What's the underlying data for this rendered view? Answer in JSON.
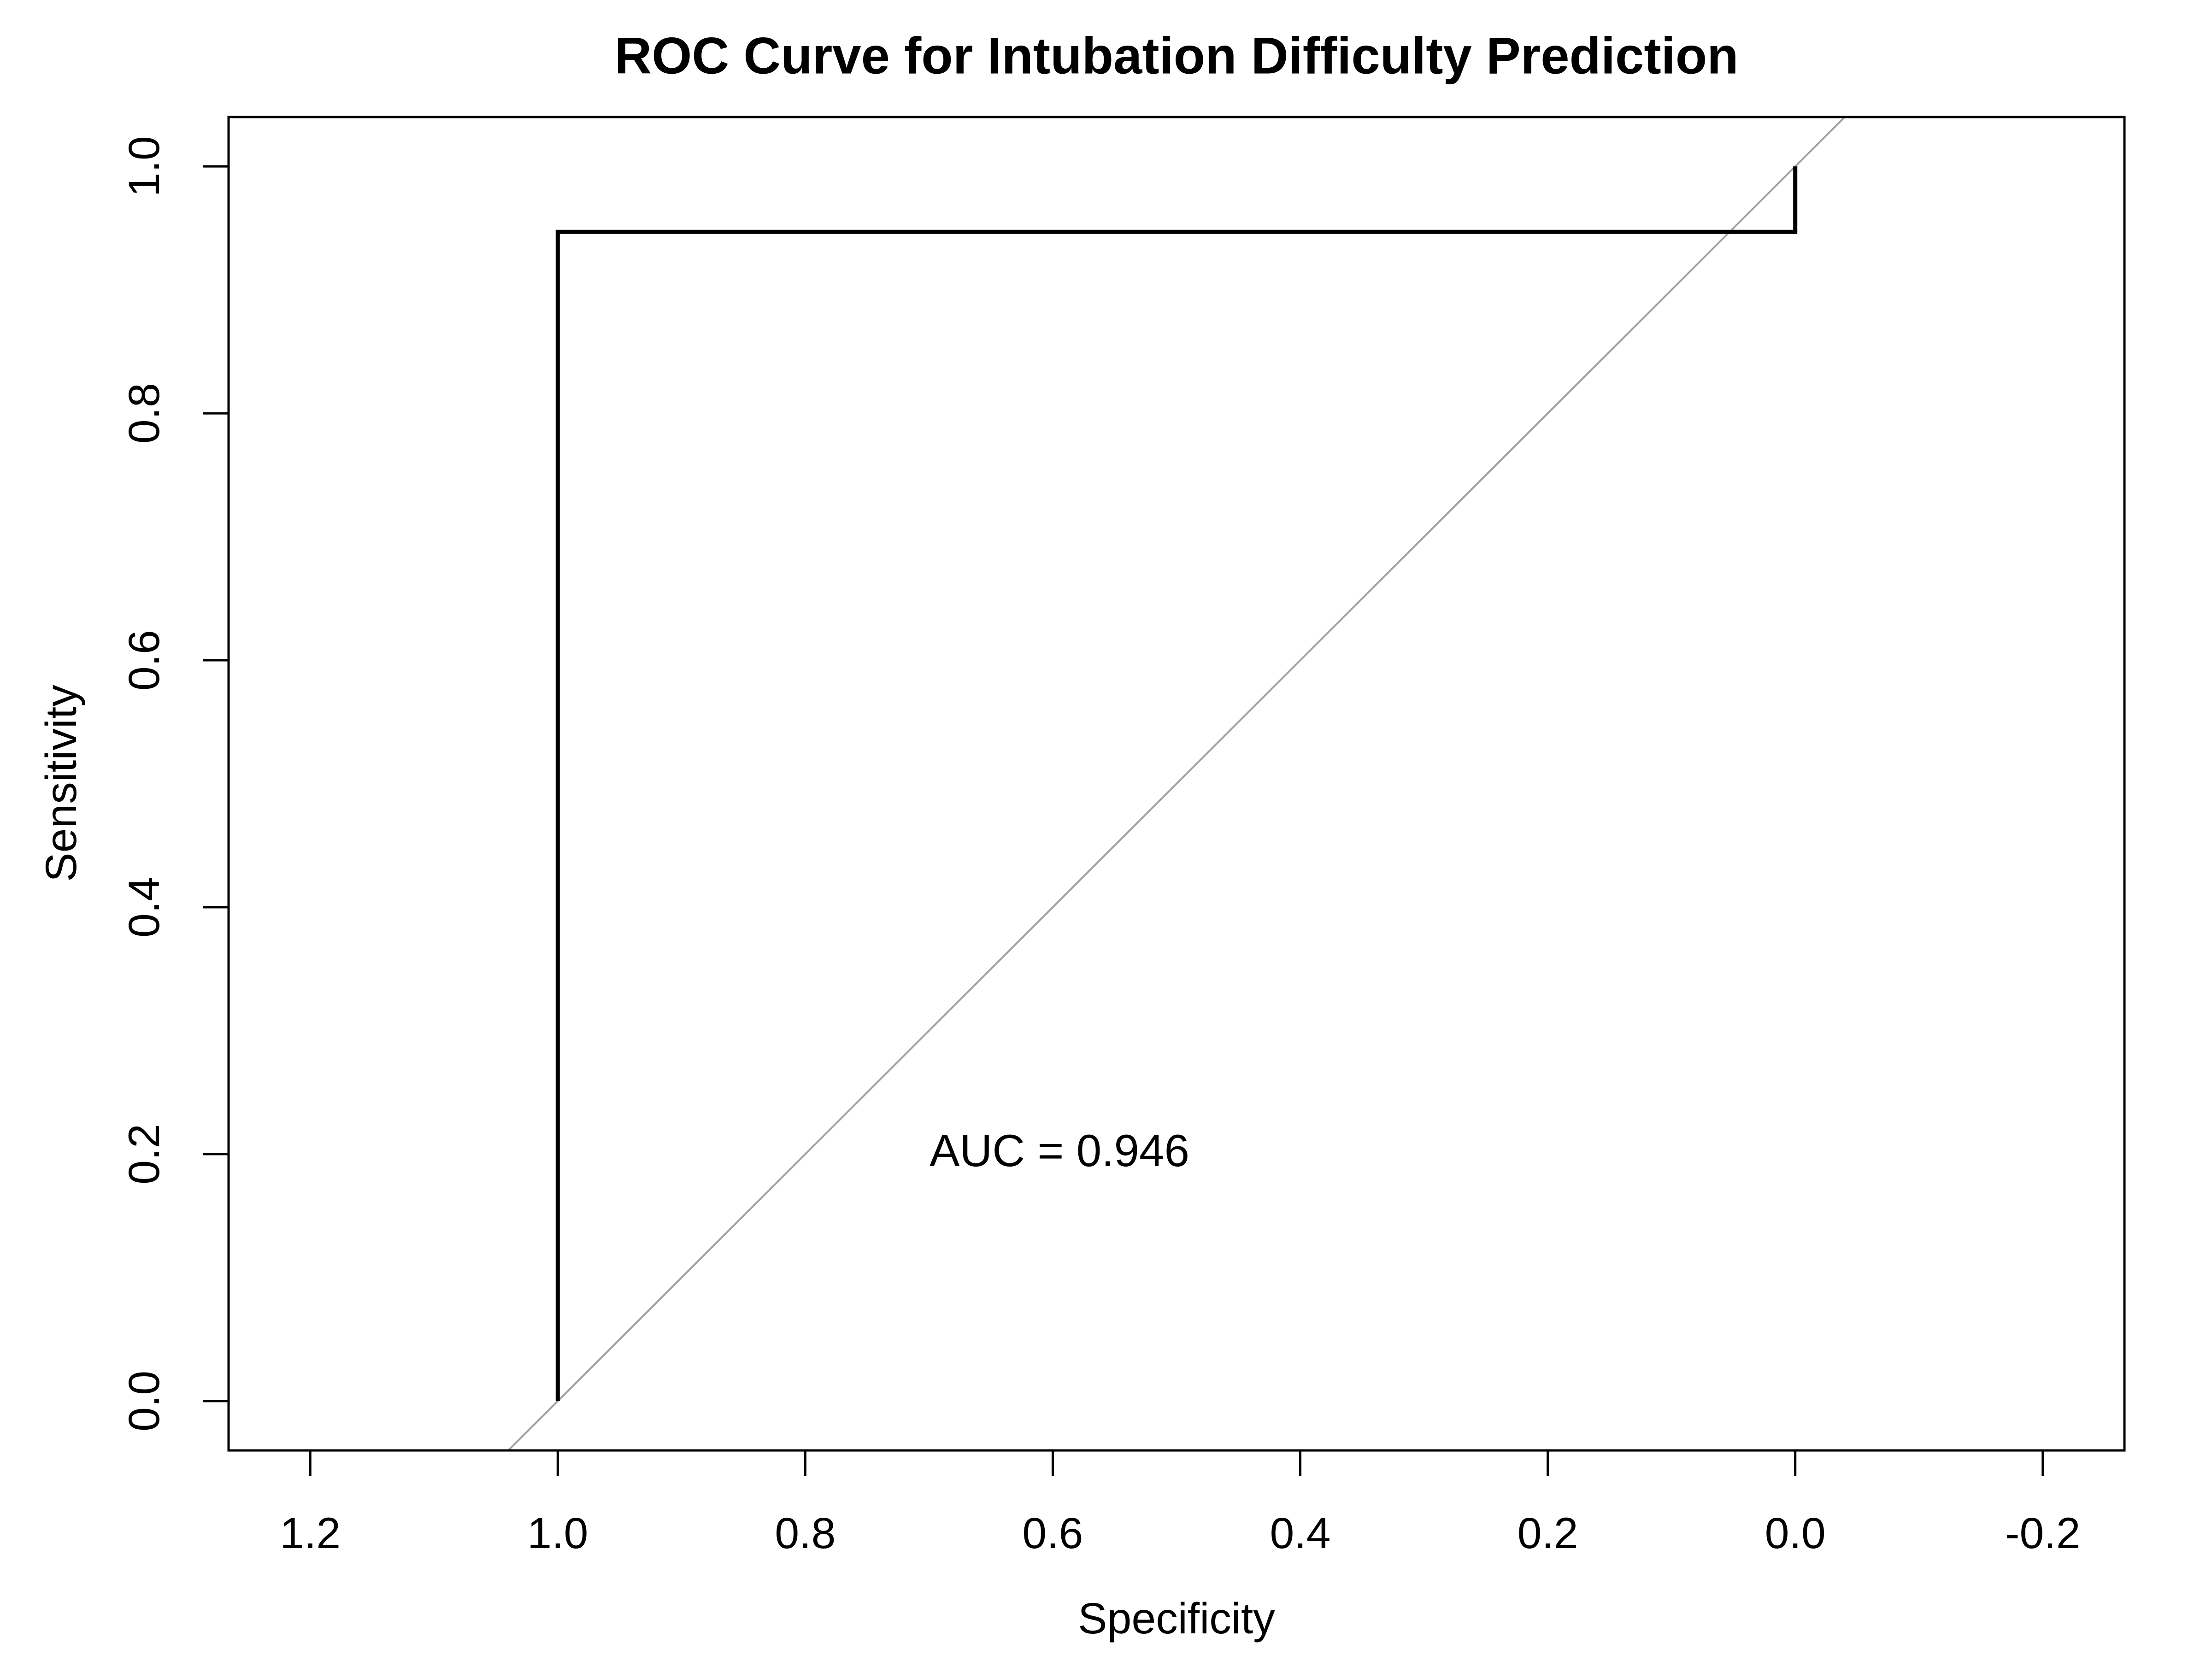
{
  "chart_data": {
    "type": "line",
    "title": "ROC Curve for Intubation Difficulty Prediction",
    "xlabel": "Specificity",
    "ylabel": "Sensitivity",
    "x_reversed": true,
    "xlim": [
      1.266,
      -0.266
    ],
    "ylim": [
      -0.04,
      1.04
    ],
    "xticks": [
      1.2,
      1.0,
      0.8,
      0.6,
      0.4,
      0.2,
      0.0,
      -0.2
    ],
    "xtick_labels": [
      "1.2",
      "1.0",
      "0.8",
      "0.6",
      "0.4",
      "0.2",
      "0.0",
      "-0.2"
    ],
    "yticks": [
      0.0,
      0.2,
      0.4,
      0.6,
      0.8,
      1.0
    ],
    "ytick_labels": [
      "0.0",
      "0.2",
      "0.4",
      "0.6",
      "0.8",
      "1.0"
    ],
    "grid": false,
    "series": [
      {
        "color": "#000000",
        "points": [
          {
            "specificity": 1.0,
            "sensitivity": 0.0
          },
          {
            "specificity": 1.0,
            "sensitivity": 0.947
          },
          {
            "specificity": 0.0,
            "sensitivity": 0.947
          },
          {
            "specificity": 0.0,
            "sensitivity": 1.0
          }
        ]
      }
    ],
    "reference_line": {
      "color": "#a0a0a0",
      "description": "sensitivity = 1 - specificity"
    },
    "annotation": {
      "text": "AUC = 0.946",
      "x": 0.71,
      "y": 0.2
    }
  }
}
